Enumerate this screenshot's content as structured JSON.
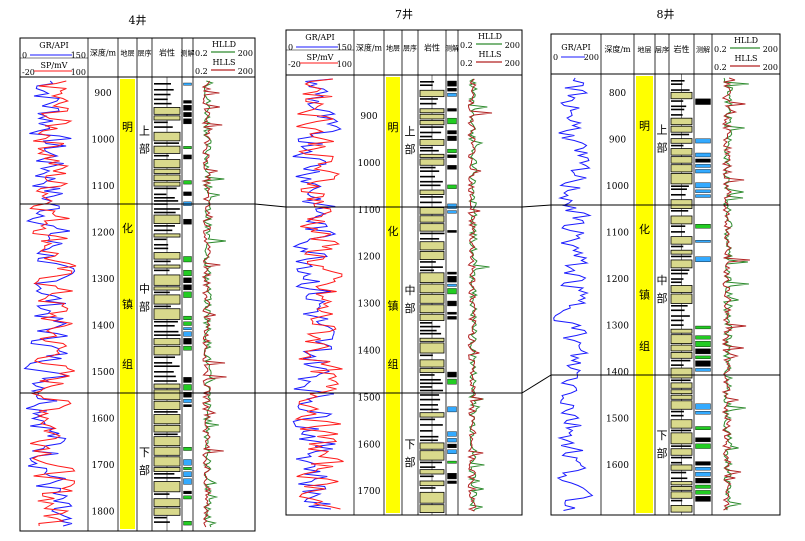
{
  "wells": [
    {
      "id": "w4",
      "name": "4井",
      "gr_label": "GR/API",
      "gr_min": "0",
      "gr_max": "150",
      "sp_label": "SP/mV",
      "sp_min": "-20",
      "sp_max": "100",
      "depth_label": "深度/m",
      "strat_label": "地层",
      "seq_label": "层序",
      "lith_label": "岩性",
      "interp_label": "测解",
      "res_top_min": "0.2",
      "res_top_name": "HLLD",
      "res_top_max": "200",
      "res_bot_min": "0.2",
      "res_bot_name": "HLLS",
      "res_bot_max": "200",
      "depth_ticks": [
        "900",
        "1000",
        "1100",
        "1200",
        "1300",
        "1400",
        "1500",
        "1600",
        "1700",
        "1800"
      ],
      "formation_chars": [
        "明",
        "化",
        "镇",
        "组"
      ],
      "units": [
        {
          "chars": [
            "上",
            "部"
          ]
        },
        {
          "chars": [
            "中",
            "部"
          ]
        },
        {
          "chars": [
            "下",
            "部"
          ]
        }
      ]
    },
    {
      "id": "w7",
      "name": "7井",
      "gr_label": "GR/API",
      "gr_min": "0",
      "gr_max": "150",
      "sp_label": "SP/mV",
      "sp_min": "-20",
      "sp_max": "100",
      "depth_label": "深度/m",
      "strat_label": "地层",
      "seq_label": "层序",
      "lith_label": "岩性",
      "interp_label": "测解",
      "res_top_min": "0.2",
      "res_top_name": "HLLD",
      "res_top_max": "200",
      "res_bot_min": "0.2",
      "res_bot_name": "HLLS",
      "res_bot_max": "200",
      "depth_ticks": [
        "900",
        "1000",
        "1100",
        "1200",
        "1300",
        "1400",
        "1500",
        "1600",
        "1700"
      ],
      "formation_chars": [
        "明",
        "化",
        "镇",
        "组"
      ],
      "units": [
        {
          "chars": [
            "上",
            "部"
          ]
        },
        {
          "chars": [
            "中",
            "部"
          ]
        },
        {
          "chars": [
            "下",
            "部"
          ]
        }
      ]
    },
    {
      "id": "w8",
      "name": "8井",
      "gr_label": "GR/API",
      "gr_min": "0",
      "gr_max": "200",
      "sp_label": "",
      "sp_min": "",
      "sp_max": "",
      "depth_label": "深度/m",
      "strat_label": "地层",
      "seq_label": "层序",
      "lith_label": "岩性",
      "interp_label": "测解",
      "res_top_min": "0.2",
      "res_top_name": "HLLD",
      "res_top_max": "200",
      "res_bot_min": "0.2",
      "res_bot_name": "HLLS",
      "res_bot_max": "200",
      "depth_ticks": [
        "800",
        "900",
        "1000",
        "1100",
        "1200",
        "1300",
        "1400",
        "1500",
        "1600"
      ],
      "formation_chars": [
        "明",
        "化",
        "镇",
        "组"
      ],
      "units": [
        {
          "chars": [
            "上",
            "部"
          ]
        },
        {
          "chars": [
            "中",
            "部"
          ]
        },
        {
          "chars": [
            "下",
            "部"
          ]
        }
      ]
    }
  ],
  "colors": {
    "gr_curve": "#1a1aff",
    "sp_curve": "#ff1a1a",
    "formation_fill": "#ffff00",
    "sandstone_fill": "#d9d98c",
    "hlld_curve": "#2e8b2e",
    "hlls_curve": "#b22222",
    "interp_green": "#22cc22",
    "interp_cyan": "#33aaff",
    "correlation_line": "#000000"
  }
}
